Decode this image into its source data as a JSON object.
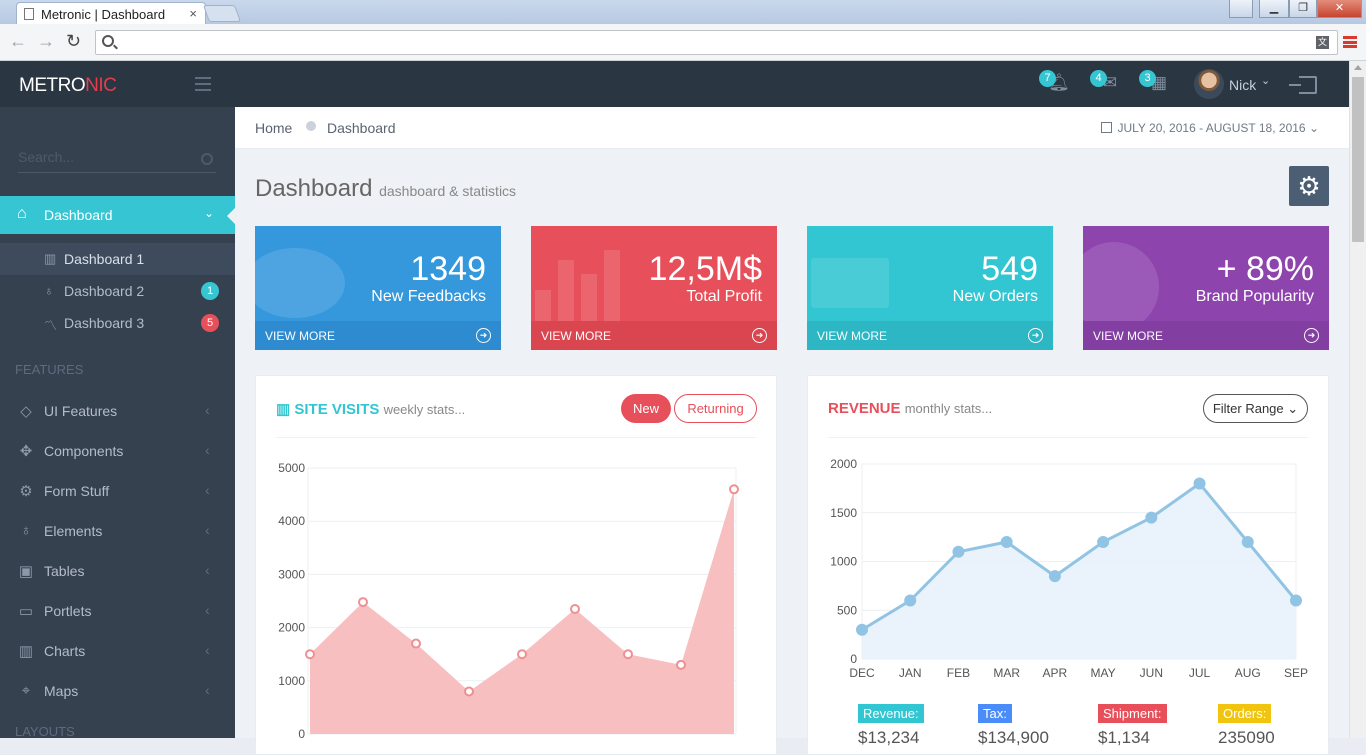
{
  "browser": {
    "tab_title": "Metronic | Dashboard",
    "tab_close": "×",
    "win_buttons": [
      "▁",
      "❐",
      "✕"
    ],
    "translate_glyph": "文"
  },
  "header": {
    "logo_a": "METRO",
    "logo_b": "NIC",
    "notifications_count": "7",
    "inbox_count": "4",
    "tasks_count": "3",
    "user_name": "Nick",
    "user_chevron": "⌄"
  },
  "sidebar": {
    "search_placeholder": "Search...",
    "active_item": "Dashboard",
    "subitems": [
      {
        "label": "Dashboard 1",
        "badge": ""
      },
      {
        "label": "Dashboard 2",
        "badge": "1"
      },
      {
        "label": "Dashboard 3",
        "badge": "5"
      }
    ],
    "features_heading": "FEATURES",
    "items": [
      "UI Features",
      "Components",
      "Form Stuff",
      "Elements",
      "Tables",
      "Portlets",
      "Charts",
      "Maps"
    ],
    "layouts_heading": "LAYOUTS"
  },
  "pagebar": {
    "breadcrumb_home": "Home",
    "breadcrumb_current": "Dashboard",
    "daterange": "JULY 20, 2016 - AUGUST 18, 2016"
  },
  "page": {
    "title": "Dashboard",
    "subtitle": "dashboard & statistics"
  },
  "stats": [
    {
      "value": "1349",
      "label": "New Feedbacks",
      "more": "VIEW MORE",
      "color": "#3598dc"
    },
    {
      "value": "12,5M$",
      "label": "Total Profit",
      "more": "VIEW MORE",
      "color": "#e7505a"
    },
    {
      "value": "549",
      "label": "New Orders",
      "more": "VIEW MORE",
      "color": "#32c5d2"
    },
    {
      "value": "+ 89%",
      "label": "Brand Popularity",
      "more": "VIEW MORE",
      "color": "#8e44ad"
    }
  ],
  "site_visits": {
    "title": "SITE VISITS",
    "subtitle": "weekly stats...",
    "tab_new": "New",
    "tab_returning": "Returning"
  },
  "revenue": {
    "title": "REVENUE",
    "subtitle": "monthly stats...",
    "filter_label": "Filter Range",
    "legend": [
      {
        "label": "Revenue:",
        "value": "$13,234",
        "color": "#32c5d2"
      },
      {
        "label": "Tax:",
        "value": "$134,900",
        "color": "#4b8df8"
      },
      {
        "label": "Shipment:",
        "value": "$1,134",
        "color": "#e7505a"
      },
      {
        "label": "Orders:",
        "value": "235090",
        "color": "#f1c40f"
      }
    ]
  },
  "chart_data": [
    {
      "type": "area",
      "x": [
        "1",
        "2",
        "3",
        "4",
        "5",
        "6",
        "7",
        "8",
        "9"
      ],
      "series": [
        {
          "values": [
            1500,
            2480,
            1700,
            800,
            1500,
            2350,
            1500,
            1300,
            4600
          ]
        }
      ],
      "y_ticks": [
        "0",
        "1000",
        "2000",
        "3000",
        "4000",
        "5000"
      ],
      "ylim": [
        0,
        5000
      ],
      "grid": true,
      "color": "#f8bfc0"
    },
    {
      "type": "area",
      "categories": [
        "DEC",
        "JAN",
        "FEB",
        "MAR",
        "APR",
        "MAY",
        "JUN",
        "JUL",
        "AUG",
        "SEP"
      ],
      "series": [
        {
          "values": [
            300,
            600,
            1100,
            1200,
            850,
            1200,
            1450,
            1800,
            1200,
            600
          ]
        }
      ],
      "y_ticks": [
        "0",
        "500",
        "1000",
        "1500",
        "2000"
      ],
      "ylim": [
        0,
        2000
      ],
      "grid": true,
      "color": "#91c4e4"
    }
  ]
}
